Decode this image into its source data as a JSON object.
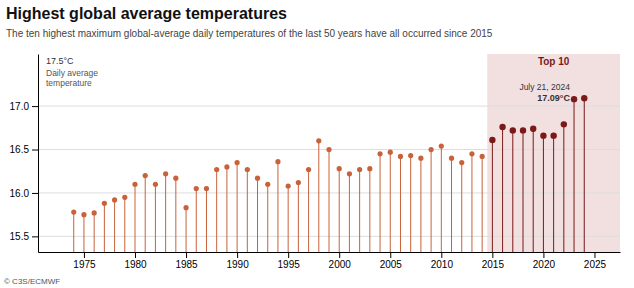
{
  "chart_data": {
    "type": "lollipop",
    "title": "Highest global average temperatures",
    "subtitle": "The ten highest maximum global-average daily temperatures of the last 50 years have all occurred since 2015",
    "ylabel_unit": "17.5°C",
    "ylabel": [
      "Daily average",
      "temperature"
    ],
    "credit": "© C3S/ECMWF",
    "annotations": [
      "July 21, 2024",
      "17.09°C"
    ],
    "highlight": {
      "from": 2015,
      "label": "Top 10",
      "color": "#F2E0E0"
    },
    "x": [
      1974,
      1975,
      1976,
      1977,
      1978,
      1979,
      1980,
      1981,
      1982,
      1983,
      1984,
      1985,
      1986,
      1987,
      1988,
      1989,
      1990,
      1991,
      1992,
      1993,
      1994,
      1995,
      1996,
      1997,
      1998,
      1999,
      2000,
      2001,
      2002,
      2003,
      2004,
      2005,
      2006,
      2007,
      2008,
      2009,
      2010,
      2011,
      2012,
      2013,
      2014,
      2015,
      2016,
      2017,
      2018,
      2019,
      2020,
      2021,
      2022,
      2023,
      2024
    ],
    "values": [
      15.78,
      15.75,
      15.77,
      15.88,
      15.92,
      15.95,
      16.1,
      16.2,
      16.1,
      16.22,
      16.17,
      15.83,
      16.05,
      16.05,
      16.27,
      16.3,
      16.35,
      16.27,
      16.17,
      16.1,
      16.36,
      16.08,
      16.12,
      16.27,
      16.6,
      16.5,
      16.28,
      16.22,
      16.27,
      16.28,
      16.45,
      16.47,
      16.42,
      16.43,
      16.4,
      16.5,
      16.54,
      16.4,
      16.35,
      16.45,
      16.42,
      16.61,
      16.76,
      16.72,
      16.72,
      16.74,
      16.66,
      16.66,
      16.79,
      17.08,
      17.09
    ],
    "colors": [
      "#C8623A",
      "#C8623A",
      "#C8623A",
      "#C8623A",
      "#C8623A",
      "#C8623A",
      "#C8623A",
      "#C8623A",
      "#C8623A",
      "#C8623A",
      "#C8623A",
      "#C8623A",
      "#C8623A",
      "#C8623A",
      "#C8623A",
      "#C8623A",
      "#C8623A",
      "#C8623A",
      "#C8623A",
      "#C8623A",
      "#C8623A",
      "#C8623A",
      "#C8623A",
      "#C8623A",
      "#C8623A",
      "#C8623A",
      "#C8623A",
      "#C8623A",
      "#C8623A",
      "#C8623A",
      "#C8623A",
      "#C8623A",
      "#C8623A",
      "#C8623A",
      "#C8623A",
      "#C8623A",
      "#C8623A",
      "#C8623A",
      "#C8623A",
      "#C8623A",
      "#C8623A",
      "#7B1818",
      "#7B1818",
      "#7B1818",
      "#7B1818",
      "#7B1818",
      "#7B1818",
      "#7B1818",
      "#7B1818",
      "#7B1818",
      "#7B1818"
    ],
    "xlim": [
      1970.5,
      2027.5
    ],
    "xticks": [
      1975,
      1980,
      1985,
      1990,
      1995,
      2000,
      2005,
      2010,
      2015,
      2020,
      2025
    ],
    "ylim": [
      15.32,
      17.6
    ],
    "yticks": [
      15.5,
      {
        "value": 16.0,
        "label": "16.0"
      },
      16.5,
      {
        "value": 17.0,
        "label": "17.0"
      }
    ],
    "grid": true
  }
}
